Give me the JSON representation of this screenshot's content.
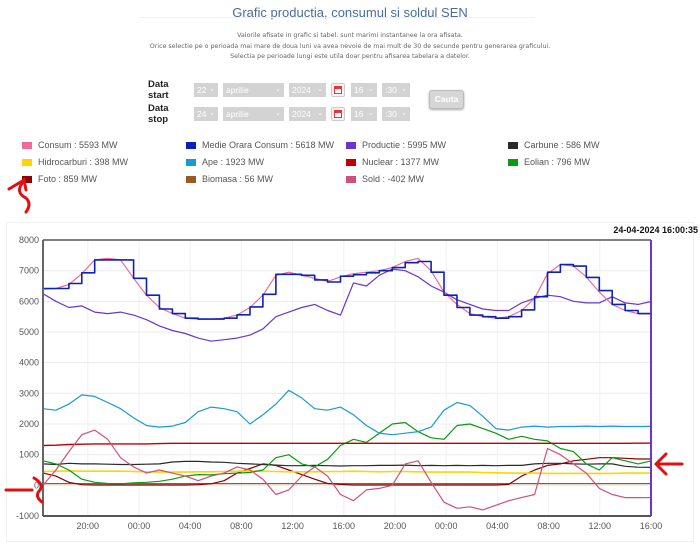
{
  "page": {
    "title": "Grafic productia, consumul si soldul SEN",
    "notes": [
      "Valorile afisate in grafic si tabel. sunt marimi instantanee la ora afisata.",
      "Orice selectie pe o perioada mai mare de doua luni va avea nevoie de mai mult de 30 de secunde pentru generarea graficului.",
      "Selectia pe perioade lungi este utila doar pentru afisarea tabelara a datelor."
    ]
  },
  "form": {
    "start": {
      "label": "Data start",
      "day": "22",
      "month": "aprilie",
      "year": "2024",
      "hour": "16",
      "minute": ":30"
    },
    "stop": {
      "label": "Data stop",
      "day": "24",
      "month": "aprilie",
      "year": "2024",
      "hour": "16",
      "minute": ":30"
    },
    "search_button": "Cauta",
    "chevron": "⌄"
  },
  "legend": [
    {
      "label": "Consum : 5593 MW",
      "color": "#f06aa0"
    },
    {
      "label": "Medie Orara Consum : 5618 MW",
      "color": "#0a22b8"
    },
    {
      "label": "Productie : 5995 MW",
      "color": "#6a35d0"
    },
    {
      "label": "Carbune : 586 MW",
      "color": "#2a2a2a"
    },
    {
      "label": "Hidrocarburi : 398 MW",
      "color": "#ffd400"
    },
    {
      "label": "Ape : 1923 MW",
      "color": "#1a9ad0"
    },
    {
      "label": "Nuclear : 1377 MW",
      "color": "#c00000"
    },
    {
      "label": "Eolian : 796 MW",
      "color": "#0a9a10"
    },
    {
      "label": "Foto : 859 MW",
      "color": "#8b0000"
    },
    {
      "label": "Biomasa : 56 MW",
      "color": "#9a5a28"
    },
    {
      "label": "Sold : -402 MW",
      "color": "#d0507a"
    }
  ],
  "chart_data": {
    "type": "line",
    "timestamp": "24-04-2024 16:00:35",
    "x_start": "22-04-2024 16:30",
    "x_step_hours": 1,
    "xticks": [
      "20:00",
      "00:00",
      "04:00",
      "08:00",
      "12:00",
      "16:00",
      "20:00",
      "00:00",
      "04:00",
      "08:00",
      "12:00",
      "16:00"
    ],
    "yticks": [
      "8000",
      "7000",
      "6000",
      "5000",
      "4000",
      "3000",
      "2000",
      "1000",
      "0",
      "-1000"
    ],
    "ylim": [
      -1000,
      8000
    ],
    "grid": true,
    "series": [
      {
        "name": "Consum",
        "color": "#f06aa0",
        "width": 1.2,
        "values": [
          6400,
          6420,
          6550,
          6900,
          7350,
          7400,
          7350,
          6750,
          6200,
          5800,
          5600,
          5450,
          5420,
          5420,
          5450,
          5550,
          5800,
          6200,
          6850,
          6950,
          6850,
          6750,
          6650,
          6800,
          6900,
          6950,
          7000,
          7100,
          7300,
          7400,
          7000,
          6300,
          5900,
          5600,
          5500,
          5450,
          5500,
          5700,
          6100,
          6900,
          7200,
          7150,
          6800,
          6300,
          5900,
          5700,
          5600,
          5590
        ]
      },
      {
        "name": "Medie Orara Consum",
        "color": "#0a22b8",
        "width": 1.6,
        "step": true,
        "values": [
          6420,
          6420,
          6580,
          6930,
          7350,
          7350,
          7350,
          6750,
          6200,
          5750,
          5600,
          5450,
          5420,
          5420,
          5450,
          5560,
          5820,
          6230,
          6880,
          6880,
          6850,
          6700,
          6630,
          6820,
          6870,
          6930,
          7000,
          7100,
          7260,
          7300,
          6950,
          6200,
          5800,
          5550,
          5500,
          5450,
          5500,
          5720,
          6150,
          6950,
          7200,
          7150,
          6780,
          6350,
          5900,
          5700,
          5600,
          5610
        ]
      },
      {
        "name": "Productie",
        "color": "#6a35d0",
        "width": 1.2,
        "values": [
          6250,
          6000,
          5800,
          5850,
          5650,
          5600,
          5650,
          5550,
          5400,
          5200,
          5050,
          4950,
          4800,
          4700,
          4750,
          4800,
          4900,
          5100,
          5500,
          5650,
          5800,
          5900,
          5700,
          5550,
          6600,
          6500,
          6850,
          7050,
          7000,
          6800,
          6500,
          6300,
          6050,
          5900,
          5750,
          5700,
          5700,
          5950,
          6100,
          6200,
          6150,
          6000,
          5950,
          5950,
          6150,
          5950,
          5900,
          5995
        ]
      },
      {
        "name": "Ape",
        "color": "#1a9ad0",
        "width": 1.2,
        "values": [
          2500,
          2450,
          2650,
          2950,
          2900,
          2700,
          2500,
          2200,
          1950,
          1900,
          1930,
          2050,
          2400,
          2550,
          2500,
          2400,
          2000,
          2300,
          2650,
          3100,
          2850,
          2500,
          2450,
          2550,
          2300,
          1950,
          1700,
          1650,
          1700,
          1750,
          1900,
          2450,
          2700,
          2600,
          2250,
          1850,
          1800,
          1900,
          1930,
          1900,
          1920,
          1920,
          1930,
          1920,
          1930,
          1920,
          1920,
          1923
        ]
      },
      {
        "name": "Nuclear",
        "color": "#c00000",
        "width": 1.4,
        "values": [
          1300,
          1310,
          1330,
          1340,
          1350,
          1350,
          1350,
          1350,
          1350,
          1360,
          1370,
          1370,
          1370,
          1370,
          1370,
          1370,
          1370,
          1370,
          1370,
          1370,
          1370,
          1370,
          1370,
          1370,
          1370,
          1370,
          1370,
          1370,
          1370,
          1370,
          1370,
          1370,
          1370,
          1370,
          1370,
          1370,
          1370,
          1370,
          1370,
          1370,
          1370,
          1370,
          1370,
          1370,
          1370,
          1370,
          1375,
          1377
        ]
      },
      {
        "name": "Carbune",
        "color": "#2a2a2a",
        "width": 1.2,
        "values": [
          700,
          680,
          720,
          700,
          700,
          690,
          680,
          680,
          690,
          700,
          760,
          780,
          780,
          760,
          750,
          720,
          700,
          680,
          660,
          640,
          640,
          650,
          640,
          630,
          640,
          640,
          650,
          650,
          660,
          640,
          650,
          640,
          650,
          640,
          650,
          640,
          650,
          650,
          700,
          720,
          720,
          700,
          690,
          700,
          700,
          620,
          590,
          586
        ]
      },
      {
        "name": "Hidrocarburi",
        "color": "#ffd400",
        "width": 1.6,
        "values": [
          450,
          460,
          470,
          460,
          460,
          460,
          460,
          450,
          440,
          430,
          430,
          430,
          440,
          440,
          450,
          460,
          470,
          460,
          450,
          440,
          440,
          440,
          450,
          450,
          460,
          450,
          440,
          450,
          450,
          440,
          430,
          430,
          430,
          430,
          420,
          410,
          400,
          400,
          400,
          390,
          390,
          390,
          390,
          390,
          390,
          398,
          398,
          398
        ]
      },
      {
        "name": "Eolian",
        "color": "#0a9a10",
        "width": 1.2,
        "values": [
          800,
          700,
          500,
          200,
          100,
          60,
          50,
          80,
          100,
          130,
          200,
          300,
          350,
          340,
          380,
          400,
          420,
          500,
          900,
          1000,
          700,
          600,
          850,
          1300,
          1500,
          1400,
          1700,
          2000,
          2050,
          1750,
          1550,
          1500,
          1950,
          2000,
          1850,
          1700,
          1500,
          1600,
          1500,
          1450,
          1200,
          1100,
          700,
          500,
          900,
          800,
          700,
          796
        ]
      },
      {
        "name": "Foto",
        "color": "#8b0000",
        "width": 1.2,
        "values": [
          400,
          300,
          100,
          20,
          10,
          10,
          10,
          10,
          10,
          10,
          10,
          10,
          20,
          50,
          150,
          400,
          550,
          700,
          650,
          500,
          350,
          200,
          60,
          30,
          10,
          10,
          10,
          10,
          10,
          10,
          10,
          10,
          10,
          10,
          10,
          10,
          30,
          300,
          500,
          650,
          700,
          800,
          850,
          900,
          900,
          880,
          860,
          859
        ]
      },
      {
        "name": "Biomasa",
        "color": "#9a5a28",
        "width": 1.2,
        "values": [
          56,
          56,
          56,
          56,
          56,
          56,
          56,
          56,
          56,
          56,
          56,
          56,
          56,
          56,
          56,
          56,
          56,
          56,
          56,
          56,
          56,
          56,
          56,
          56,
          56,
          56,
          56,
          56,
          56,
          56,
          56,
          56,
          56,
          56,
          56,
          56,
          56,
          56,
          56,
          56,
          56,
          56,
          56,
          56,
          56,
          56,
          56,
          56
        ]
      },
      {
        "name": "Sold",
        "color": "#d0507a",
        "width": 1.2,
        "values": [
          0,
          500,
          1100,
          1650,
          1800,
          1500,
          900,
          600,
          400,
          500,
          400,
          300,
          150,
          300,
          400,
          600,
          500,
          200,
          -300,
          -150,
          300,
          600,
          300,
          -300,
          -500,
          -150,
          -100,
          0,
          700,
          800,
          100,
          -550,
          -750,
          -700,
          -800,
          -650,
          -500,
          -400,
          -300,
          1200,
          1000,
          700,
          400,
          -100,
          -300,
          -400,
          -400,
          -402
        ]
      }
    ]
  },
  "annotations": {
    "arrow_color": "#e01010"
  }
}
